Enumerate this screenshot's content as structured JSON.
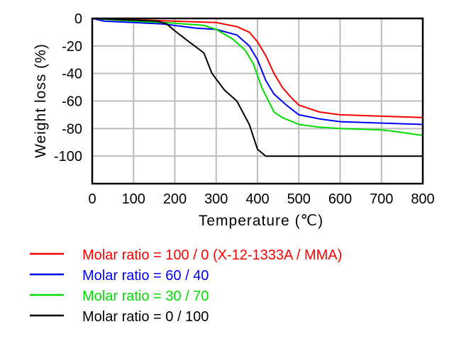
{
  "chart_data": {
    "type": "line",
    "title": "",
    "xlabel": "Temperature (℃)",
    "ylabel": "Weight loss (%)",
    "xlim": [
      0,
      800
    ],
    "ylim": [
      -120,
      0
    ],
    "xticks": [
      0,
      100,
      200,
      300,
      400,
      500,
      600,
      700,
      800
    ],
    "yticks": [
      0,
      -20,
      -40,
      -60,
      -80,
      -100
    ],
    "grid": true,
    "legend_position": "bottom",
    "series": [
      {
        "name": "Molar ratio = 100 / 0 (X-12-1333A / MMA)",
        "color": "#ff0000",
        "x": [
          0,
          100,
          200,
          300,
          350,
          380,
          400,
          420,
          440,
          460,
          480,
          500,
          550,
          600,
          700,
          800
        ],
        "y": [
          0,
          -1,
          -2,
          -3,
          -6,
          -10,
          -17,
          -27,
          -40,
          -50,
          -57,
          -63,
          -68,
          -70,
          -71,
          -72
        ]
      },
      {
        "name": "Molar ratio = 60 / 40",
        "color": "#0000ff",
        "x": [
          0,
          30,
          100,
          170,
          250,
          300,
          350,
          380,
          400,
          420,
          440,
          470,
          500,
          550,
          600,
          700,
          800
        ],
        "y": [
          0,
          -2,
          -3,
          -4,
          -7,
          -8,
          -12,
          -20,
          -30,
          -45,
          -55,
          -63,
          -70,
          -73,
          -75,
          -76,
          -77
        ]
      },
      {
        "name": "Molar ratio = 30 / 70",
        "color": "#00dd00",
        "x": [
          0,
          100,
          170,
          200,
          270,
          300,
          340,
          370,
          390,
          410,
          440,
          460,
          500,
          550,
          600,
          700,
          730,
          800
        ],
        "y": [
          0,
          -2,
          -3,
          -3.5,
          -5,
          -8,
          -15,
          -23,
          -33,
          -50,
          -68,
          -72,
          -77,
          -79,
          -80,
          -81,
          -82,
          -85
        ]
      },
      {
        "name": "Molar ratio = 0 / 100",
        "color": "#000000",
        "x": [
          0,
          160,
          180,
          200,
          230,
          270,
          290,
          320,
          350,
          380,
          400,
          420,
          800
        ],
        "y": [
          0,
          -2,
          -4,
          -9,
          -16,
          -25,
          -40,
          -52,
          -60,
          -77,
          -95,
          -100,
          -100
        ]
      }
    ]
  }
}
